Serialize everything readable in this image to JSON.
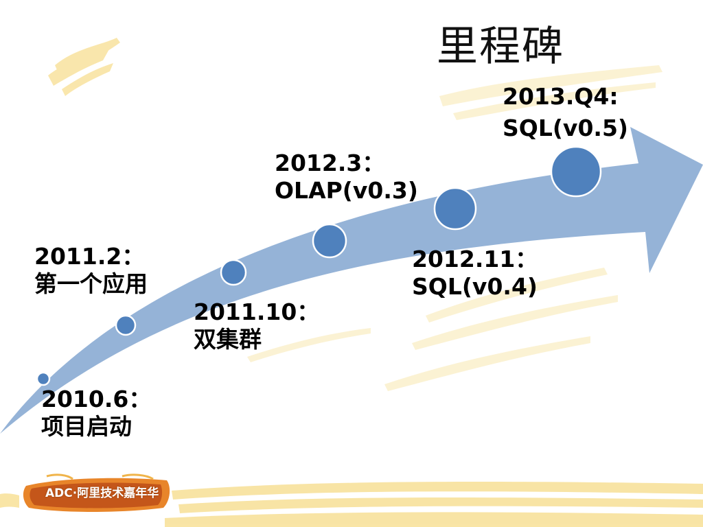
{
  "title": "里程碑",
  "milestones": [
    {
      "date": "2010.6：",
      "desc": "项目启动"
    },
    {
      "date": "2011.2：",
      "desc": "第一个应用"
    },
    {
      "date": "2011.10：",
      "desc": "双集群"
    },
    {
      "date": "2012.3：",
      "desc": "OLAP(v0.3)"
    },
    {
      "date": "2012.11：",
      "desc": "SQL(v0.4)"
    },
    {
      "date": "2013.Q4:",
      "desc": "SQL(v0.5)"
    }
  ],
  "logo": {
    "text": "ADC·阿里技术嘉年华"
  },
  "colors": {
    "arrow": "#95b3d7",
    "dot": "#4f81bd",
    "dot_stroke": "#ffffff",
    "brush": "#f5d36a"
  }
}
